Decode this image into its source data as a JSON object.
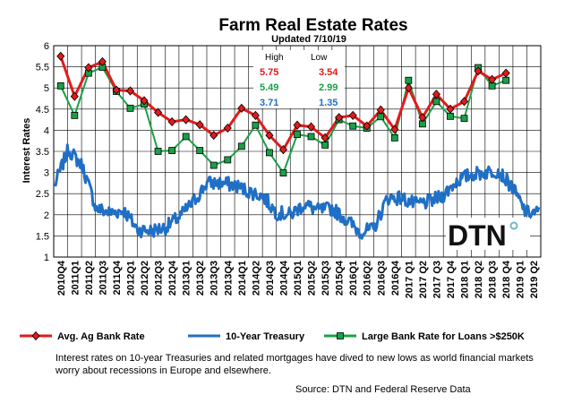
{
  "chart_data": {
    "type": "line",
    "title": "Farm Real Estate Rates",
    "subtitle": "Updated  7/10/19",
    "ylabel": "Interest Rates",
    "xlabel": "",
    "ylim": [
      1,
      6
    ],
    "yticks": [
      "1",
      "1.5",
      "2",
      "2.5",
      "3",
      "3.5",
      "4",
      "4.5",
      "5",
      "5.5",
      "6"
    ],
    "grid": true,
    "legend_placement": "bottom",
    "categories": [
      "2010Q4",
      "2011Q1",
      "2011Q2",
      "2011Q3",
      "2011Q4",
      "2012Q1",
      "2012Q2",
      "2012Q3",
      "2012Q4",
      "2013Q1",
      "2013Q2",
      "2013Q3",
      "2013Q4",
      "2014Q1",
      "2014Q2",
      "2014Q3",
      "2014Q4",
      "2015Q1",
      "2015Q2",
      "2015Q3",
      "2015Q4",
      "2016Q1",
      "2016Q2",
      "2016Q3",
      "2016Q4",
      "2017 Q1",
      "2017 Q2",
      "2017 Q3",
      "2017 Q4",
      "2018 Q1",
      "2018 Q2",
      "2018 Q3",
      "2018 Q4",
      "2019 Q1",
      "2019 Q2"
    ],
    "series": [
      {
        "name": "Avg. Ag Bank Rate",
        "color": "#e31a1c",
        "marker": "diamond",
        "values": [
          5.75,
          4.8,
          5.48,
          5.62,
          4.95,
          4.93,
          4.7,
          4.42,
          4.2,
          4.25,
          4.13,
          3.88,
          4.05,
          4.52,
          4.35,
          3.88,
          3.54,
          4.12,
          4.08,
          3.82,
          4.3,
          4.35,
          4.1,
          4.48,
          4.02,
          5.0,
          4.3,
          4.85,
          4.5,
          4.68,
          5.4,
          5.2,
          5.35,
          null,
          null
        ]
      },
      {
        "name": "10-Year Treasury",
        "color": "#1f6fc5",
        "marker": "none",
        "weekly_step_per_quarter": 13,
        "quarter_levels": [
          2.7,
          3.55,
          3.15,
          2.15,
          2.05,
          2.1,
          1.65,
          1.62,
          1.7,
          1.95,
          2.3,
          2.75,
          2.75,
          2.7,
          2.55,
          2.45,
          2.05,
          2.0,
          2.25,
          2.1,
          2.15,
          1.9,
          1.6,
          1.65,
          2.4,
          2.4,
          2.25,
          2.3,
          2.45,
          2.8,
          2.95,
          3.0,
          3.05,
          2.65,
          2.05
        ]
      },
      {
        "name": "Large Bank Rate for Loans >$250K",
        "color": "#1aa046",
        "marker": "square",
        "values": [
          5.05,
          4.35,
          5.35,
          5.49,
          4.92,
          4.52,
          4.62,
          3.5,
          3.52,
          3.85,
          3.52,
          3.17,
          3.3,
          3.62,
          4.12,
          3.47,
          2.99,
          3.9,
          3.85,
          3.65,
          4.25,
          4.1,
          4.05,
          4.32,
          3.82,
          5.18,
          4.15,
          4.68,
          4.33,
          4.28,
          5.48,
          5.05,
          5.18,
          null,
          null
        ]
      }
    ],
    "high_low_table": {
      "headers": [
        "High",
        "Low"
      ],
      "rows": [
        {
          "high": "5.75",
          "low": "3.54",
          "color": "#e31a1c"
        },
        {
          "high": "5.49",
          "low": "2.99",
          "color": "#1aa046"
        },
        {
          "high": "3.71",
          "low": "1.35",
          "color": "#1f6fc5"
        }
      ]
    },
    "logo": {
      "text": "DTN",
      "accent": "#6fb8c9"
    },
    "note": "Interest rates on 10-year Treasuries and related mortgages have dived to new lows as world financial markets worry about recessions in Europe and elsewhere.",
    "source": "Source: DTN  and Federal Reserve Data"
  }
}
